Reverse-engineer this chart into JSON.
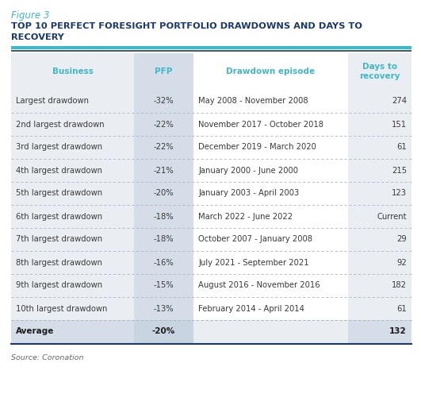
{
  "figure_label": "Figure 3",
  "title_line1": "TOP 10 PERFECT FORESIGHT PORTFOLIO DRAWDOWNS AND DAYS TO",
  "title_line2": "RECOVERY",
  "source": "Source: Coronation",
  "figure_label_color": "#3eb8c8",
  "title_color": "#1a3a6e",
  "header_text_color": "#3eb8c8",
  "body_text_color": "#3a3a3a",
  "avg_text_color": "#1a1a1a",
  "col_bg_business": "#eaeef3",
  "col_bg_pfp": "#d5dde8",
  "col_bg_episode": "#ffffff",
  "col_bg_days": "#eaeef3",
  "avg_bg_business": "#d5dde8",
  "avg_bg_pfp": "#c8d4e0",
  "avg_bg_episode": "#eaeef3",
  "avg_bg_days": "#d5dde8",
  "divider_color": "#adb8c8",
  "top_line_color": "#3eb8c8",
  "bottom_line_color": "#1a3a6e",
  "columns": [
    "Business",
    "PFP",
    "Drawdown episode",
    "Days to\nrecovery"
  ],
  "rows": [
    [
      "Largest drawdown",
      "-32%",
      "May 2008 - November 2008",
      "274"
    ],
    [
      "2nd largest drawdown",
      "-22%",
      "November 2017 - October 2018",
      "151"
    ],
    [
      "3rd largest drawdown",
      "-22%",
      "December 2019 - March 2020",
      "61"
    ],
    [
      "4th largest drawdown",
      "-21%",
      "January 2000 - June 2000",
      "215"
    ],
    [
      "5th largest drawdown",
      "-20%",
      "January 2003 - April 2003",
      "123"
    ],
    [
      "6th largest drawdown",
      "-18%",
      "March 2022 - June 2022",
      "Current"
    ],
    [
      "7th largest drawdown",
      "-18%",
      "October 2007 - January 2008",
      "29"
    ],
    [
      "8th largest drawdown",
      "-16%",
      "July 2021 - September 2021",
      "92"
    ],
    [
      "9th largest drawdown",
      "-15%",
      "August 2016 - November 2016",
      "182"
    ],
    [
      "10th largest drawdown",
      "-13%",
      "February 2014 - April 2014",
      "61"
    ]
  ],
  "avg_row": [
    "Average",
    "-20%",
    "",
    "132"
  ]
}
